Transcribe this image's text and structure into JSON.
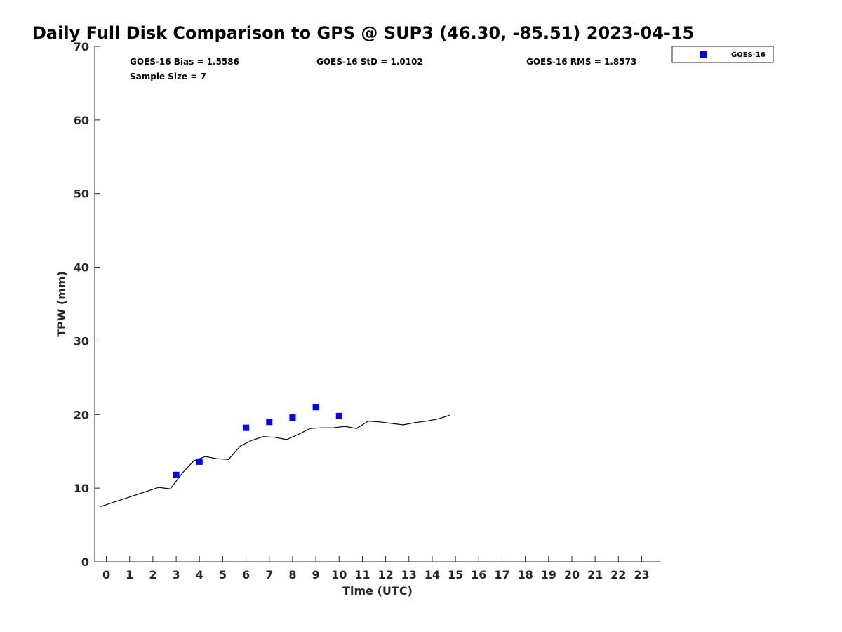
{
  "chart_data": {
    "type": "scatter",
    "title": "Daily Full Disk Comparison to GPS @ SUP3 (46.30, -85.51) 2023-04-15",
    "xlabel": "Time (UTC)",
    "ylabel": "TPW (mm)",
    "xlim": [
      -0.5,
      23.8
    ],
    "ylim": [
      0,
      70
    ],
    "x_ticks": [
      0,
      1,
      2,
      3,
      4,
      5,
      6,
      7,
      8,
      9,
      10,
      11,
      12,
      13,
      14,
      15,
      16,
      17,
      18,
      19,
      20,
      21,
      22,
      23
    ],
    "y_ticks": [
      0,
      10,
      20,
      30,
      40,
      50,
      60,
      70
    ],
    "grid": false,
    "legend_position": "top-right",
    "stats": {
      "bias": "GOES-16 Bias = 1.5586",
      "std": "GOES-16 StD = 1.0102",
      "rms": "GOES-16 RMS = 1.8573",
      "sample_size": "Sample Size = 7"
    },
    "series": [
      {
        "name": "GOES-16",
        "kind": "scatter",
        "marker": "square",
        "color": "#0000ff",
        "x": [
          3,
          4,
          6,
          7,
          8,
          9,
          10
        ],
        "y": [
          11.8,
          13.6,
          18.2,
          19.0,
          19.6,
          21.0,
          19.8
        ]
      },
      {
        "kind": "line",
        "color": "#000000",
        "x": [
          -0.25,
          2.25,
          2.75,
          3.25,
          3.75,
          4.25,
          4.75,
          5.25,
          5.75,
          6.25,
          6.75,
          7.25,
          7.75,
          8.25,
          8.75,
          9.25,
          9.75,
          10.25,
          10.75,
          11.25,
          11.75,
          12.25,
          12.75,
          13.25,
          13.75,
          14.25,
          14.75
        ],
        "y": [
          7.5,
          10.1,
          9.9,
          12.0,
          13.7,
          14.3,
          14.0,
          13.9,
          15.7,
          16.5,
          17.0,
          16.9,
          16.6,
          17.3,
          18.1,
          18.2,
          18.2,
          18.4,
          18.1,
          19.1,
          19.0,
          18.8,
          18.6,
          18.9,
          19.1,
          19.4,
          19.9
        ]
      }
    ]
  }
}
